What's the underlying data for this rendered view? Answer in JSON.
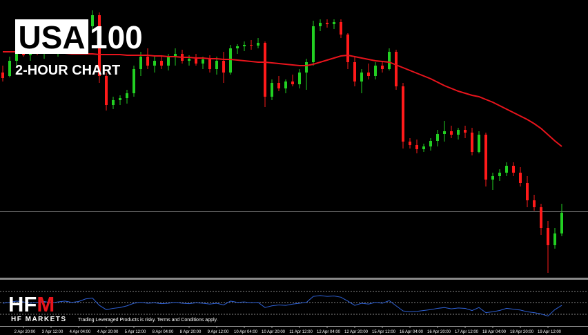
{
  "header": {
    "title_box": "USA",
    "title_rest": "100",
    "subtitle": "2-HOUR CHART"
  },
  "chart_data": {
    "type": "candlestick",
    "categories": [
      null,
      null,
      null,
      "2 Apr 20:00",
      null,
      null,
      null,
      "3 Apr 12:00",
      null,
      null,
      null,
      "4 Apr 04:00",
      null,
      null,
      null,
      "4 Apr 20:00",
      null,
      null,
      null,
      "5 Apr 12:00",
      null,
      null,
      null,
      "8 Apr 04:00",
      null,
      null,
      null,
      "8 Apr 20:00",
      null,
      null,
      null,
      "9 Apr 12:00",
      null,
      null,
      null,
      "10 Apr 04:00",
      null,
      null,
      null,
      "10 Apr 20:00",
      null,
      null,
      null,
      "11 Apr 12:00",
      null,
      null,
      null,
      "12 Apr 04:00",
      null,
      null,
      null,
      "12 Apr 20:00",
      null,
      null,
      null,
      "15 Apr 12:00",
      null,
      null,
      null,
      "16 Apr 04:00",
      null,
      null,
      null,
      "16 Apr 20:00",
      null,
      null,
      null,
      "17 Apr 12:00",
      null,
      null,
      null,
      "18 Apr 04:00",
      null,
      null,
      null,
      "18 Apr 20:00",
      null,
      null,
      null,
      "19 Apr 12:00",
      null,
      null
    ],
    "open": [
      295,
      290,
      312,
      325,
      320,
      330,
      322,
      334,
      328,
      336,
      330,
      348,
      340,
      362,
      378,
      290,
      248,
      255,
      258,
      265,
      300,
      318,
      305,
      312,
      305,
      318,
      322,
      312,
      315,
      308,
      314,
      300,
      312,
      295,
      330,
      333,
      335,
      334,
      338,
      260,
      280,
      272,
      282,
      278,
      295,
      310,
      362,
      367,
      365,
      368,
      350,
      310,
      282,
      295,
      290,
      305,
      300,
      325,
      275,
      195,
      190,
      184,
      188,
      196,
      206,
      210,
      205,
      212,
      208,
      180,
      205,
      140,
      145,
      150,
      160,
      150,
      135,
      110,
      100,
      70,
      45,
      62
    ],
    "high": [
      305,
      318,
      330,
      340,
      335,
      345,
      338,
      346,
      340,
      350,
      355,
      360,
      370,
      385,
      382,
      295,
      260,
      262,
      270,
      305,
      325,
      330,
      318,
      320,
      322,
      330,
      328,
      320,
      322,
      318,
      320,
      318,
      325,
      335,
      336,
      340,
      342,
      345,
      340,
      285,
      290,
      285,
      292,
      300,
      315,
      370,
      372,
      372,
      372,
      372,
      352,
      318,
      300,
      308,
      310,
      312,
      330,
      328,
      280,
      200,
      198,
      192,
      200,
      212,
      225,
      218,
      215,
      218,
      215,
      210,
      208,
      150,
      155,
      165,
      165,
      158,
      145,
      118,
      105,
      80,
      70,
      105
    ],
    "low": [
      282,
      288,
      305,
      318,
      312,
      320,
      315,
      325,
      318,
      328,
      325,
      335,
      335,
      355,
      280,
      240,
      242,
      248,
      250,
      260,
      290,
      300,
      295,
      300,
      298,
      305,
      308,
      305,
      305,
      300,
      295,
      292,
      280,
      292,
      322,
      326,
      328,
      330,
      245,
      255,
      268,
      265,
      275,
      272,
      270,
      305,
      355,
      360,
      358,
      345,
      300,
      275,
      265,
      285,
      285,
      295,
      298,
      270,
      185,
      185,
      178,
      180,
      182,
      188,
      195,
      200,
      198,
      200,
      175,
      178,
      130,
      125,
      138,
      145,
      145,
      130,
      100,
      95,
      60,
      5,
      40,
      58
    ],
    "close": [
      287,
      312,
      325,
      320,
      330,
      322,
      334,
      328,
      336,
      330,
      348,
      340,
      362,
      378,
      290,
      248,
      255,
      258,
      265,
      300,
      318,
      305,
      312,
      305,
      318,
      322,
      312,
      315,
      308,
      314,
      300,
      312,
      295,
      330,
      333,
      335,
      334,
      338,
      260,
      280,
      272,
      282,
      278,
      295,
      310,
      362,
      367,
      365,
      368,
      350,
      310,
      282,
      295,
      290,
      305,
      300,
      325,
      275,
      195,
      190,
      184,
      188,
      196,
      206,
      210,
      205,
      212,
      208,
      180,
      205,
      140,
      145,
      150,
      160,
      150,
      135,
      110,
      100,
      70,
      45,
      62,
      92
    ],
    "up_color": "#22d022",
    "down_color": "#ff1a1a",
    "ylim": [
      0,
      400
    ],
    "moving_average": {
      "color": "#e8141c",
      "values": [
        325,
        325,
        325,
        324,
        324,
        324,
        323,
        323,
        323,
        323,
        322,
        322,
        322,
        322,
        321,
        321,
        321,
        321,
        320,
        320,
        320,
        320,
        319,
        319,
        318,
        318,
        317,
        317,
        316,
        316,
        315,
        315,
        314,
        314,
        313,
        312,
        311,
        310,
        310,
        309,
        308,
        307,
        306,
        305,
        305,
        307,
        310,
        313,
        316,
        319,
        320,
        318,
        316,
        314,
        312,
        311,
        310,
        306,
        302,
        298,
        294,
        290,
        286,
        281,
        276,
        272,
        268,
        265,
        262,
        260,
        256,
        252,
        247,
        242,
        237,
        232,
        227,
        221,
        214,
        205,
        196,
        188
      ]
    },
    "indicator": {
      "type": "line",
      "color": "#2f62d8",
      "ylim": [
        0,
        100
      ],
      "values": [
        50,
        52,
        55,
        53,
        50,
        52,
        54,
        51,
        53,
        55,
        52,
        54,
        60,
        62,
        45,
        35,
        38,
        40,
        44,
        50,
        52,
        50,
        51,
        49,
        50,
        52,
        50,
        49,
        51,
        50,
        48,
        50,
        46,
        55,
        52,
        53,
        51,
        52,
        40,
        44,
        46,
        45,
        48,
        50,
        52,
        66,
        68,
        66,
        67,
        64,
        55,
        45,
        50,
        48,
        52,
        50,
        56,
        44,
        32,
        30,
        31,
        33,
        35,
        38,
        40,
        37,
        39,
        38,
        33,
        40,
        28,
        30,
        33,
        38,
        36,
        34,
        30,
        28,
        25,
        20,
        35,
        45
      ]
    }
  },
  "footer": {
    "logo": "HFM",
    "brand": "HF MARKETS",
    "disclaimer": "Trading Leveraged Products is risky. Terms and Conditions apply."
  }
}
